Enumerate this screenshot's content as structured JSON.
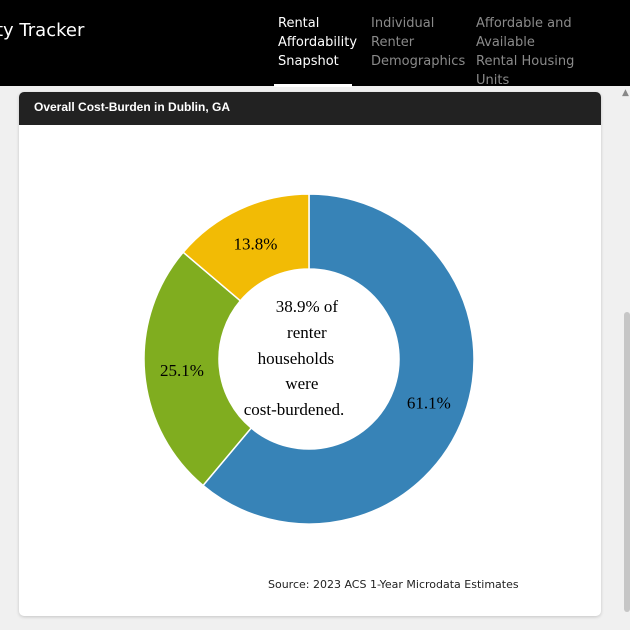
{
  "header": {
    "app_title": "ty Tracker",
    "tabs": [
      {
        "lines": [
          "Rental",
          "Affordability",
          "Snapshot"
        ],
        "active": true
      },
      {
        "lines": [
          "Individual",
          "Renter",
          "Demographics"
        ],
        "active": false
      },
      {
        "lines": [
          "Affordable and Available",
          "Rental Housing",
          "Units"
        ],
        "active": false
      }
    ]
  },
  "card": {
    "title": "Overall Cost-Burden in Dublin, GA",
    "source": "Source: 2023 ACS 1-Year Microdata Estimates"
  },
  "chart_data": {
    "type": "pie",
    "title": "Overall Cost-Burden in Dublin, GA",
    "slices": [
      {
        "label": "61.1%",
        "value": 61.1,
        "color": "#3783b7"
      },
      {
        "label": "25.1%",
        "value": 25.1,
        "color": "#80ad1f"
      },
      {
        "label": "13.8%",
        "value": 13.8,
        "color": "#f2bb05"
      }
    ],
    "center_text": [
      "38.9% of",
      "renter",
      "households",
      "were",
      "cost-burdened."
    ]
  },
  "colors": {
    "topbar": "#000000",
    "card_header": "#222222"
  }
}
